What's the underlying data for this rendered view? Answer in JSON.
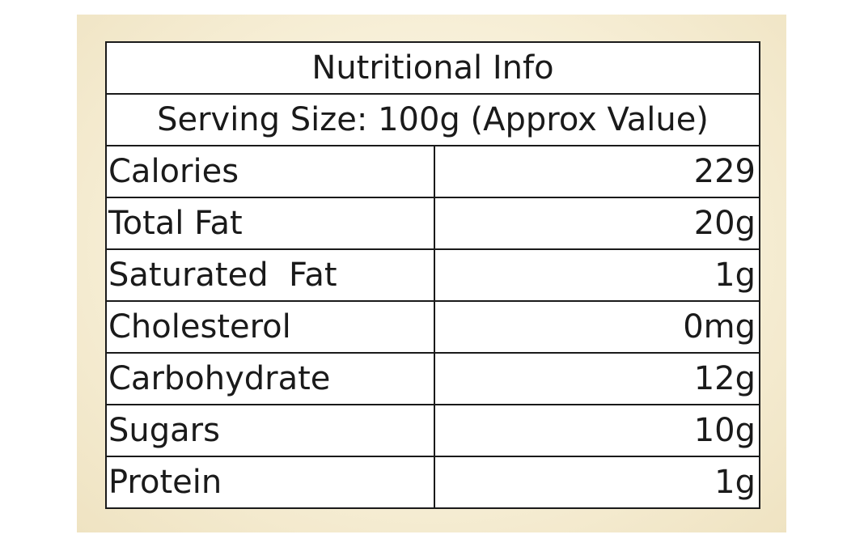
{
  "title": "Nutritional Info",
  "serving": "Serving Size: 100g (Approx Value)",
  "rows": [
    {
      "label": "Calories",
      "value": "229"
    },
    {
      "label": "Total Fat",
      "value": "20g"
    },
    {
      "label": "Saturated  Fat",
      "value": "1g"
    },
    {
      "label": "Cholesterol",
      "value": "0mg"
    },
    {
      "label": "Carbohydrate",
      "value": "12g"
    },
    {
      "label": "Sugars",
      "value": "10g"
    },
    {
      "label": "Protein",
      "value": "1g"
    }
  ]
}
